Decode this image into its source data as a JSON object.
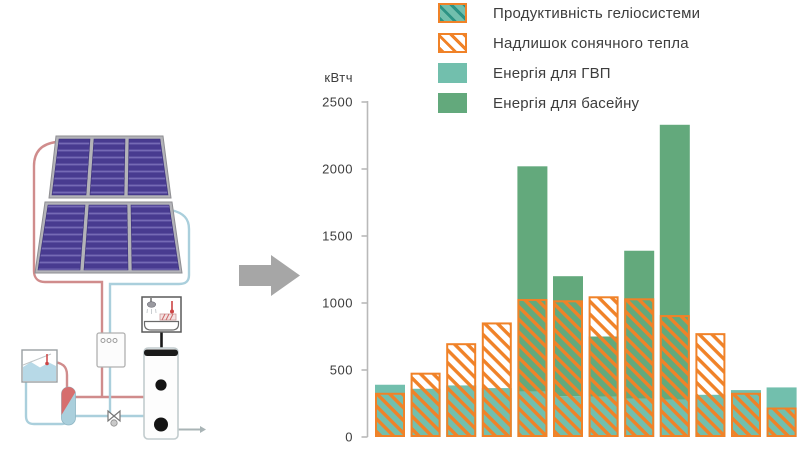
{
  "colors": {
    "teal": "#72bfad",
    "green": "#63a97c",
    "orange": "#f08228",
    "hatch_teal": "#2d9384",
    "axis": "#b9b9b9",
    "text": "#3d3d3d",
    "arrow": "#a6a6a6"
  },
  "diagram": {
    "type": "solar-thermal-system-schematic"
  },
  "chart_data": {
    "type": "bar",
    "title": "",
    "ylabel": "кВтч",
    "xlabel": "",
    "ylim": [
      0,
      2500
    ],
    "yticks": [
      0,
      500,
      1000,
      1500,
      2000,
      2500
    ],
    "x_tick_labels": [],
    "bar_count": 12,
    "grid": false,
    "legend_position": "top-right",
    "series": [
      {
        "name": "Енергія для ГВП",
        "style": "solid-base",
        "color_key": "teal",
        "values": [
          390,
          360,
          385,
          365,
          340,
          305,
          300,
          285,
          280,
          315,
          350,
          370
        ]
      },
      {
        "name": "Енергія для басейну",
        "style": "solid-stacked",
        "color_key": "green",
        "values": [
          0,
          0,
          0,
          0,
          1680,
          895,
          450,
          1105,
          2050,
          0,
          0,
          0
        ]
      },
      {
        "name": "Продуктивність геліосистеми",
        "style": "hatched-overlay-from-zero",
        "color_key": "orange",
        "values": [
          330,
          480,
          700,
          855,
          1030,
          1020,
          1050,
          1035,
          910,
          775,
          330,
          220
        ]
      },
      {
        "name": "Надлишок сонячного тепла",
        "style": "derived-excess-above-demand",
        "color_key": "orange",
        "values": [
          0,
          120,
          315,
          490,
          0,
          0,
          300,
          0,
          0,
          460,
          0,
          0
        ]
      }
    ],
    "legend": [
      {
        "label": "Продуктивність геліосистеми",
        "swatch": "teal-hatched"
      },
      {
        "label": "Надлишок сонячного тепла",
        "swatch": "white-hatched"
      },
      {
        "label": "Енергія для ГВП",
        "swatch": "teal-solid"
      },
      {
        "label": "Енергія для басейну",
        "swatch": "green-solid"
      }
    ]
  }
}
